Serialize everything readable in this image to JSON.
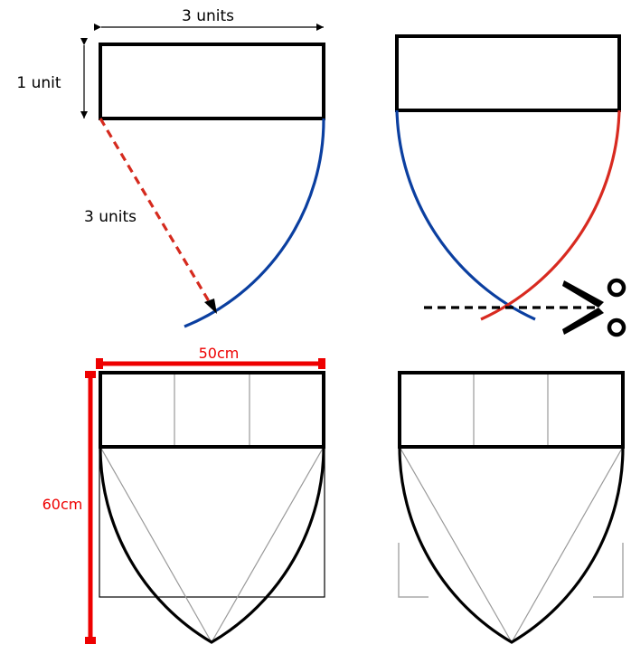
{
  "panel1": {
    "width_label": "3 units",
    "height_label": "1 unit",
    "radius_label": "3 units"
  },
  "panel3": {
    "width_label": "50cm",
    "height_label": "60cm"
  },
  "colors": {
    "outline": "#000000",
    "blue_arc": "#0b3fa0",
    "red_arc": "#d82a20",
    "radius_line": "#d52a1e",
    "measure_red": "#ee0000",
    "guide_gray": "#999999",
    "corner_gray": "#aaaaaa"
  },
  "icons": {
    "scissors": "scissors-icon"
  }
}
